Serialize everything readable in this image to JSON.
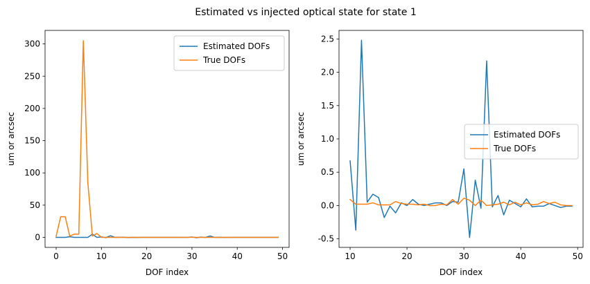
{
  "title": "Estimated vs injected optical state for state 1",
  "colors": {
    "estimated": "#1f77b4",
    "true": "#ff7f0e"
  },
  "chart_data": [
    {
      "type": "line",
      "xlabel": "DOF index",
      "ylabel": "um or arcsec",
      "xlim": [
        -2.45,
        51.45
      ],
      "ylim": [
        -15.5,
        321
      ],
      "xticks": [
        0,
        10,
        20,
        30,
        40,
        50
      ],
      "yticks": [
        0,
        50,
        100,
        150,
        200,
        250,
        300
      ],
      "legend_loc": "upper right",
      "series": [
        {
          "name": "Estimated DOFs",
          "color": "#1f77b4",
          "x": [
            0,
            1,
            2,
            3,
            4,
            5,
            6,
            7,
            8,
            9,
            10,
            11,
            12,
            13,
            14,
            15,
            16,
            17,
            18,
            19,
            20,
            21,
            22,
            23,
            24,
            25,
            26,
            27,
            28,
            29,
            30,
            31,
            32,
            33,
            34,
            35,
            36,
            37,
            38,
            39,
            40,
            41,
            42,
            43,
            44,
            45,
            46,
            47,
            48,
            49
          ],
          "y": [
            0,
            0,
            0,
            1,
            0,
            0,
            0,
            0,
            5,
            0,
            0.67,
            -0.37,
            2.48,
            0.05,
            0.17,
            0.12,
            -0.18,
            -0.01,
            -0.11,
            0.04,
            0.0,
            0.09,
            0.02,
            0.0,
            0.02,
            0.04,
            0.04,
            0.0,
            0.06,
            0.05,
            0.55,
            -0.48,
            0.38,
            -0.04,
            2.17,
            -0.02,
            0.15,
            -0.14,
            0.08,
            0.03,
            -0.02,
            0.1,
            -0.02,
            -0.01,
            -0.01,
            0.03,
            0.0,
            -0.03,
            -0.01,
            -0.01
          ]
        },
        {
          "name": "True DOFs",
          "color": "#ff7f0e",
          "x": [
            0,
            1,
            2,
            3,
            4,
            5,
            6,
            7,
            8,
            9,
            10,
            11,
            12,
            13,
            14,
            15,
            16,
            17,
            18,
            19,
            20,
            21,
            22,
            23,
            24,
            25,
            26,
            27,
            28,
            29,
            30,
            31,
            32,
            33,
            34,
            35,
            36,
            37,
            38,
            39,
            40,
            41,
            42,
            43,
            44,
            45,
            46,
            47,
            48,
            49
          ],
          "y": [
            2,
            32,
            32,
            2,
            5,
            5,
            305,
            85,
            2,
            6,
            0.09,
            0.02,
            0.02,
            0.02,
            0.04,
            0.01,
            0.01,
            0.01,
            0.06,
            0.03,
            0.02,
            0.02,
            0.01,
            0.02,
            0.0,
            0.0,
            0.02,
            0.01,
            0.09,
            0.02,
            0.11,
            0.08,
            0.0,
            0.08,
            0.0,
            0.01,
            0.02,
            0.05,
            0.01,
            0.05,
            0.01,
            0.04,
            0.01,
            0.02,
            0.06,
            0.03,
            0.05,
            0.01,
            0.0,
            0.0
          ]
        }
      ]
    },
    {
      "type": "line",
      "xlabel": "DOF index",
      "ylabel": "um or arcsec",
      "xlim": [
        8.05,
        50.95
      ],
      "ylim": [
        -0.628,
        2.628
      ],
      "xticks": [
        10,
        20,
        30,
        40,
        50
      ],
      "yticks": [
        -0.5,
        0.0,
        0.5,
        1.0,
        1.5,
        2.0,
        2.5
      ],
      "legend_loc": "center right",
      "series": [
        {
          "name": "Estimated DOFs",
          "color": "#1f77b4",
          "x": [
            10,
            11,
            12,
            13,
            14,
            15,
            16,
            17,
            18,
            19,
            20,
            21,
            22,
            23,
            24,
            25,
            26,
            27,
            28,
            29,
            30,
            31,
            32,
            33,
            34,
            35,
            36,
            37,
            38,
            39,
            40,
            41,
            42,
            43,
            44,
            45,
            46,
            47,
            48,
            49
          ],
          "y": [
            0.67,
            -0.37,
            2.48,
            0.05,
            0.17,
            0.12,
            -0.18,
            -0.01,
            -0.11,
            0.04,
            0.0,
            0.09,
            0.02,
            0.0,
            0.02,
            0.04,
            0.04,
            0.0,
            0.06,
            0.05,
            0.55,
            -0.48,
            0.38,
            -0.04,
            2.17,
            -0.02,
            0.15,
            -0.14,
            0.08,
            0.03,
            -0.02,
            0.1,
            -0.02,
            -0.01,
            -0.01,
            0.03,
            0.0,
            -0.03,
            -0.01,
            -0.01
          ]
        },
        {
          "name": "True DOFs",
          "color": "#ff7f0e",
          "x": [
            10,
            11,
            12,
            13,
            14,
            15,
            16,
            17,
            18,
            19,
            20,
            21,
            22,
            23,
            24,
            25,
            26,
            27,
            28,
            29,
            30,
            31,
            32,
            33,
            34,
            35,
            36,
            37,
            38,
            39,
            40,
            41,
            42,
            43,
            44,
            45,
            46,
            47,
            48,
            49
          ],
          "y": [
            0.09,
            0.02,
            0.02,
            0.02,
            0.04,
            0.01,
            0.01,
            0.01,
            0.06,
            0.03,
            0.02,
            0.02,
            0.01,
            0.02,
            0.0,
            0.0,
            0.02,
            0.01,
            0.09,
            0.02,
            0.11,
            0.08,
            0.0,
            0.08,
            0.0,
            0.01,
            0.02,
            0.05,
            0.01,
            0.05,
            0.01,
            0.04,
            0.01,
            0.02,
            0.06,
            0.03,
            0.05,
            0.01,
            0.0,
            0.0
          ]
        }
      ]
    }
  ]
}
